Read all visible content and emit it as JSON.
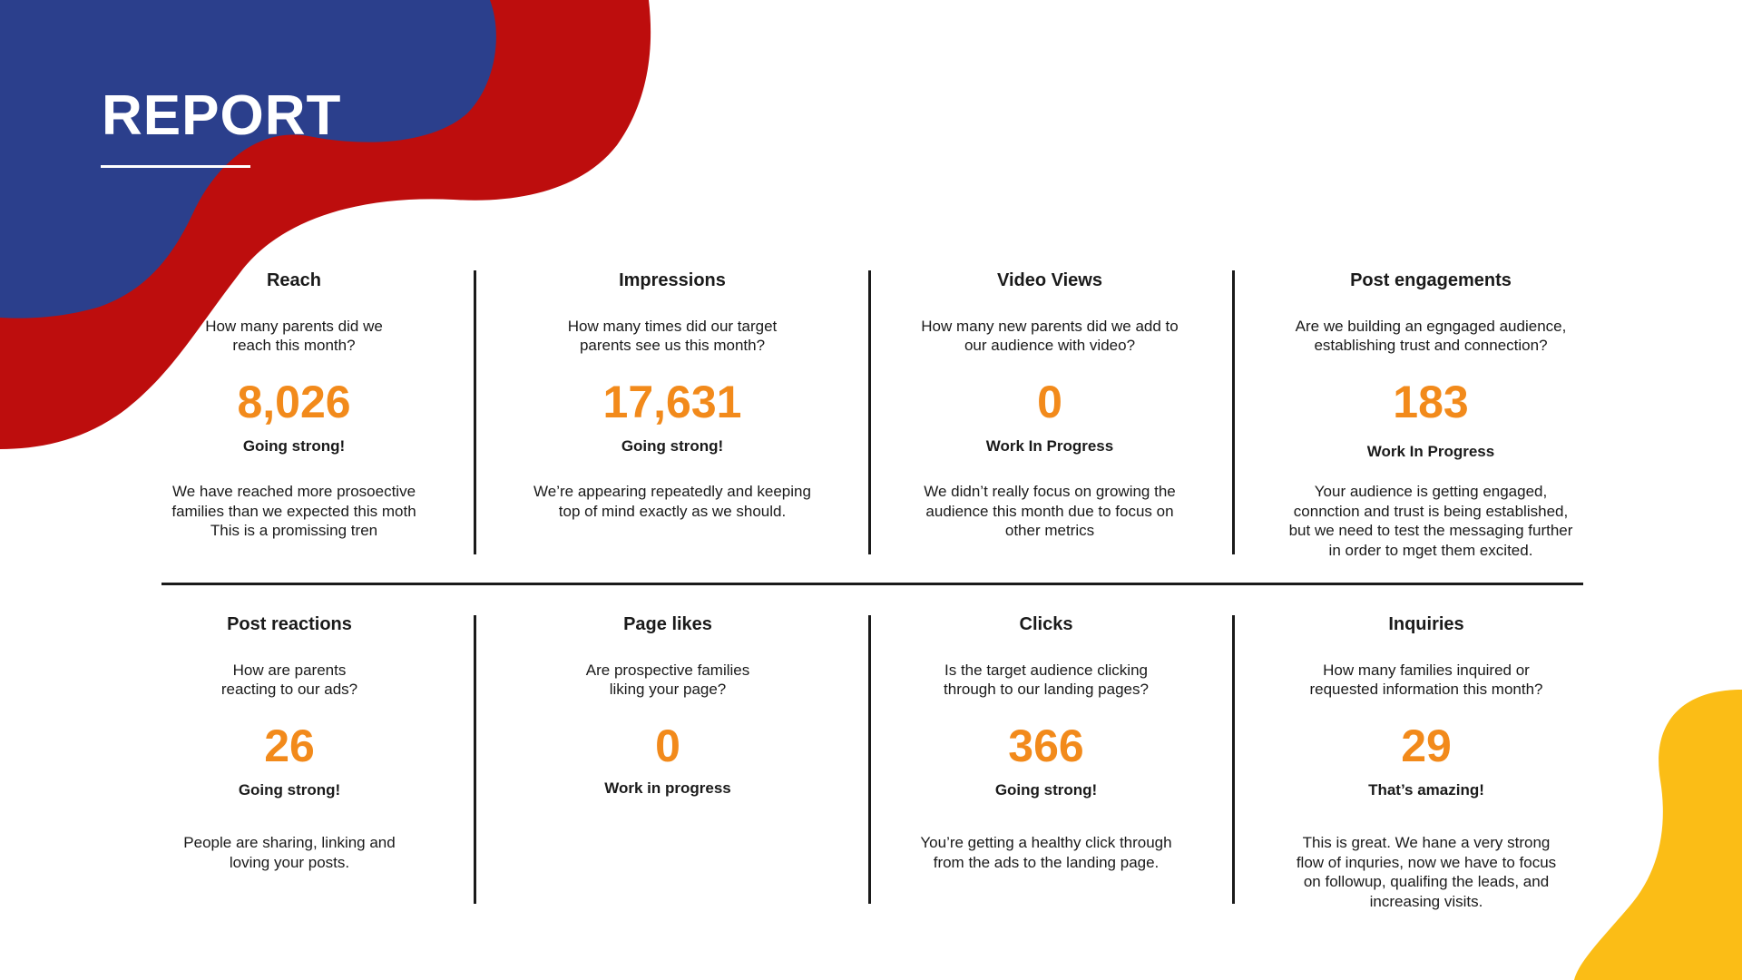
{
  "title": "REPORT",
  "colors": {
    "accent": "#f28a1b",
    "blue": "#2b3f8c",
    "red": "#bd0d0d",
    "yellow": "#fbbd16"
  },
  "metrics": [
    {
      "title": "Reach",
      "question": "How many parents did we\nreach this month?",
      "value": "8,026",
      "status": "Going strong!",
      "description": "We have reached more prosoective\nfamilies than we expected this moth\nThis is a promissing tren"
    },
    {
      "title": "Impressions",
      "question": "How many  times did our target\nparents see us this month?",
      "value": "17,631",
      "status": "Going strong!",
      "description": "We’re appearing repeatedly and keeping\ntop of mind exactly as we should."
    },
    {
      "title": "Video Views",
      "question": "How many new parents did we add to\nour audience with video?",
      "value": "0",
      "status": "Work In Progress",
      "description": "We didn’t really focus on growing the\naudience this month due to focus on\nother metrics"
    },
    {
      "title": "Post engagements",
      "question": "Are we building an egngaged audience,\nestablishing trust and connection?",
      "value": "183",
      "status": "Work In Progress",
      "description": "Your audience is getting engaged,\nconnction and trust is being established,\nbut we need to test the messaging further\nin order to mget them excited."
    },
    {
      "title": "Post reactions",
      "question": "How are parents\nreacting to our ads?",
      "value": "26",
      "status": "Going strong!",
      "description": "People are sharing, linking and\nloving your posts."
    },
    {
      "title": "Page likes",
      "question": "Are prospective families\nliking your page?",
      "value": "0",
      "status": "Work in progress",
      "description": ""
    },
    {
      "title": "Clicks",
      "question": "Is the target audience clicking\nthrough to our landing pages?",
      "value": "366",
      "status": "Going strong!",
      "description": "You’re getting a healthy click through\nfrom the ads to the landing page."
    },
    {
      "title": "Inquiries",
      "question": "How many families inquired or\nrequested information this month?",
      "value": "29",
      "status": "That’s amazing!",
      "description": "This is great. We hane a very strong\nflow of inquries, now we have to focus\non followup, qualifing the leads, and\nincreasing visits."
    }
  ]
}
